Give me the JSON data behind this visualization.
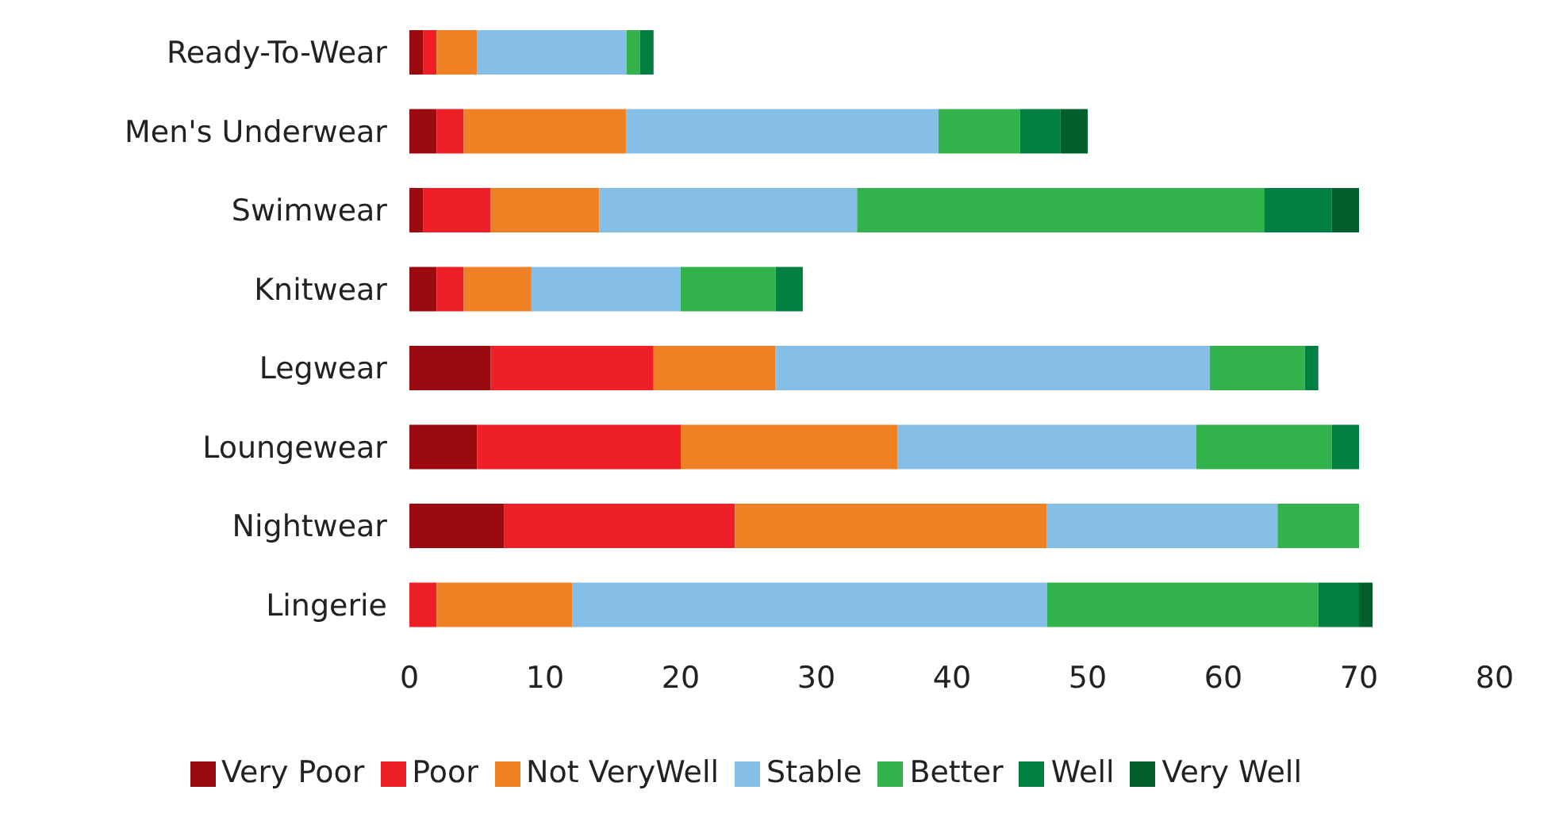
{
  "chart_data": {
    "type": "bar",
    "orientation": "horizontal",
    "stacked": true,
    "categories": [
      "Ready-To-Wear",
      "Men's Underwear",
      "Swimwear",
      "Knitwear",
      "Legwear",
      "Loungewear",
      "Nightwear",
      "Lingerie"
    ],
    "series": [
      {
        "name": "Very Poor",
        "color": "#9b0a0e",
        "values": [
          1,
          2,
          1,
          2,
          6,
          5,
          7,
          0
        ]
      },
      {
        "name": "Poor",
        "color": "#ee1f26",
        "values": [
          1,
          2,
          5,
          2,
          12,
          15,
          17,
          2
        ]
      },
      {
        "name": "Not VeryWell",
        "color": "#ef8023",
        "values": [
          3,
          12,
          8,
          5,
          9,
          16,
          23,
          10
        ]
      },
      {
        "name": "Stable",
        "color": "#85bfe7",
        "values": [
          11,
          23,
          19,
          11,
          32,
          22,
          17,
          35
        ]
      },
      {
        "name": "Better",
        "color": "#31b24a",
        "values": [
          1,
          6,
          30,
          7,
          7,
          10,
          6,
          20
        ]
      },
      {
        "name": "Well",
        "color": "#008040",
        "values": [
          1,
          3,
          5,
          2,
          1,
          2,
          0,
          3
        ]
      },
      {
        "name": "Very Well",
        "color": "#005f2a",
        "values": [
          0,
          2,
          2,
          0,
          0,
          0,
          0,
          1
        ]
      }
    ],
    "xlim": [
      0,
      80
    ],
    "xticks": [
      0,
      10,
      20,
      30,
      40,
      50,
      60,
      70,
      80
    ],
    "grid": false,
    "legend": "bottom"
  }
}
